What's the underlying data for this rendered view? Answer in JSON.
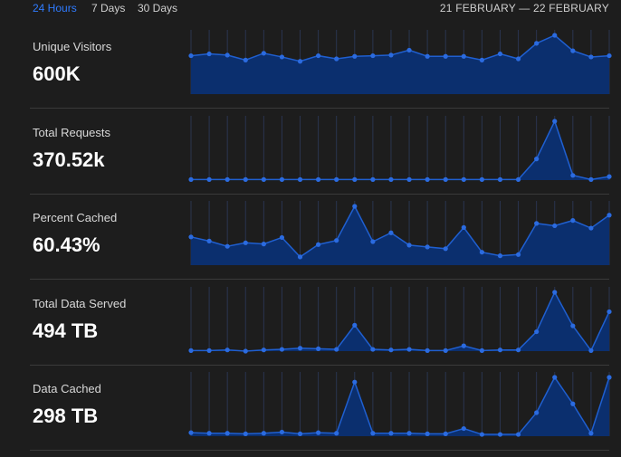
{
  "tabs": [
    {
      "label": "24 Hours",
      "active": true
    },
    {
      "label": "7 Days",
      "active": false
    },
    {
      "label": "30 Days",
      "active": false
    }
  ],
  "date_range": "21 FEBRUARY — 22 FEBRUARY",
  "colors": {
    "accent": "#2f7bff",
    "area_fill": "#0b2f6e",
    "line": "#1f5fd0",
    "point": "#2b6be0",
    "grid": "#2a3550"
  },
  "metrics": [
    {
      "label": "Unique Visitors",
      "value": "600K",
      "series": [
        62,
        65,
        63,
        55,
        66,
        60,
        53,
        62,
        57,
        61,
        62,
        63,
        71,
        61,
        61,
        61,
        55,
        65,
        57,
        82,
        95,
        70,
        60,
        62
      ]
    },
    {
      "label": "Total Requests",
      "value": "370.52k",
      "series": [
        1,
        1,
        1,
        1,
        1,
        1,
        1,
        1,
        1,
        1,
        1,
        1,
        1,
        1,
        1,
        1,
        1,
        1,
        1,
        36,
        100,
        8,
        1,
        6
      ]
    },
    {
      "label": "Percent Cached",
      "value": "60.43%",
      "series": [
        48,
        41,
        32,
        38,
        36,
        47,
        14,
        35,
        42,
        100,
        40,
        55,
        34,
        31,
        28,
        64,
        22,
        16,
        18,
        71,
        67,
        76,
        63,
        85
      ]
    },
    {
      "label": "Total Data Served",
      "value": "494 TB",
      "series": [
        1,
        1,
        2,
        0,
        2,
        3,
        5,
        4,
        3,
        44,
        3,
        2,
        3,
        1,
        1,
        9,
        1,
        2,
        2,
        33,
        100,
        43,
        1,
        67
      ]
    },
    {
      "label": "Data Cached",
      "value": "298 TB",
      "series": [
        6,
        5,
        5,
        4,
        5,
        7,
        4,
        6,
        5,
        92,
        5,
        5,
        5,
        4,
        4,
        13,
        3,
        3,
        3,
        40,
        100,
        55,
        5,
        100
      ]
    }
  ]
}
